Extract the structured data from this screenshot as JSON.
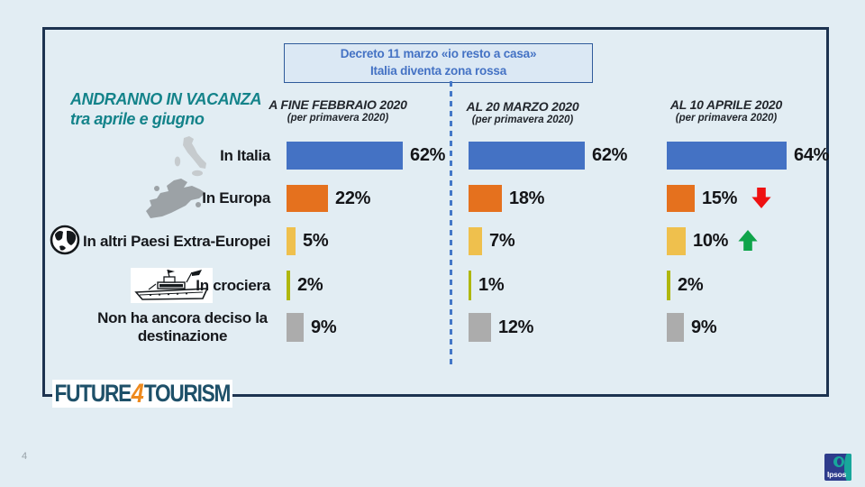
{
  "page": {
    "number": "4"
  },
  "decree_box": {
    "line1": "Decreto 11 marzo «io resto a casa»",
    "line2": "Italia diventa zona rossa"
  },
  "title": {
    "line1": "ANDRANNO IN VACANZA",
    "line2": "tra aprile e giugno"
  },
  "columns": [
    {
      "title": "A FINE FEBBRAIO 2020",
      "subtitle": "(per primavera 2020)"
    },
    {
      "title": "AL 20 MARZO 2020",
      "subtitle": "(per primavera 2020)"
    },
    {
      "title": "AL 10 APRILE 2020",
      "subtitle": "(per primavera 2020)"
    }
  ],
  "chart_data": {
    "type": "bar",
    "orientation": "horizontal",
    "unit": "%",
    "title": "ANDRANNO IN VACANZA tra aprile e giugno",
    "annotation": "Decreto 11 marzo «io resto a casa» Italia diventa zona rossa",
    "categories": [
      "In Italia",
      "In Europa",
      "In altri Paesi Extra-Europei",
      "In crociera",
      "Non ha ancora deciso la destinazione"
    ],
    "series": [
      {
        "name": "A FINE FEBBRAIO 2020 (per primavera 2020)",
        "values": [
          62,
          22,
          5,
          2,
          9
        ]
      },
      {
        "name": "AL 20 MARZO 2020 (per primavera 2020)",
        "values": [
          62,
          18,
          7,
          1,
          12
        ]
      },
      {
        "name": "AL 10 APRILE 2020 (per primavera 2020)",
        "values": [
          64,
          15,
          10,
          2,
          9
        ]
      }
    ],
    "value_labels": [
      [
        "62%",
        "22%",
        "5%",
        "2%",
        "9%"
      ],
      [
        "62%",
        "18%",
        "7%",
        "1%",
        "12%"
      ],
      [
        "64%",
        "15%",
        "10%",
        "2%",
        "9%"
      ]
    ],
    "row_colors": [
      "#4472C4",
      "#E5711E",
      "#EFC04D",
      "#AFB70E",
      "#ACACAC"
    ],
    "row_icons": [
      "italy-map",
      "europe-map",
      "globe",
      "cruise-ship",
      null
    ],
    "trends": [
      {
        "category": "In Europa",
        "series": "AL 10 APRILE 2020",
        "direction": "down",
        "color": "#EE1111"
      },
      {
        "category": "In altri Paesi Extra-Europei",
        "series": "AL 10 APRILE 2020",
        "direction": "up",
        "color": "#0FA44A"
      }
    ],
    "xlim": [
      0,
      100
    ],
    "grid": false,
    "legend_position": "column-headers"
  },
  "logo": {
    "part1": "FUTURE",
    "part2": "4",
    "part3": "TOURISM"
  },
  "ipsos_logo": {
    "label": "Ipsos"
  }
}
